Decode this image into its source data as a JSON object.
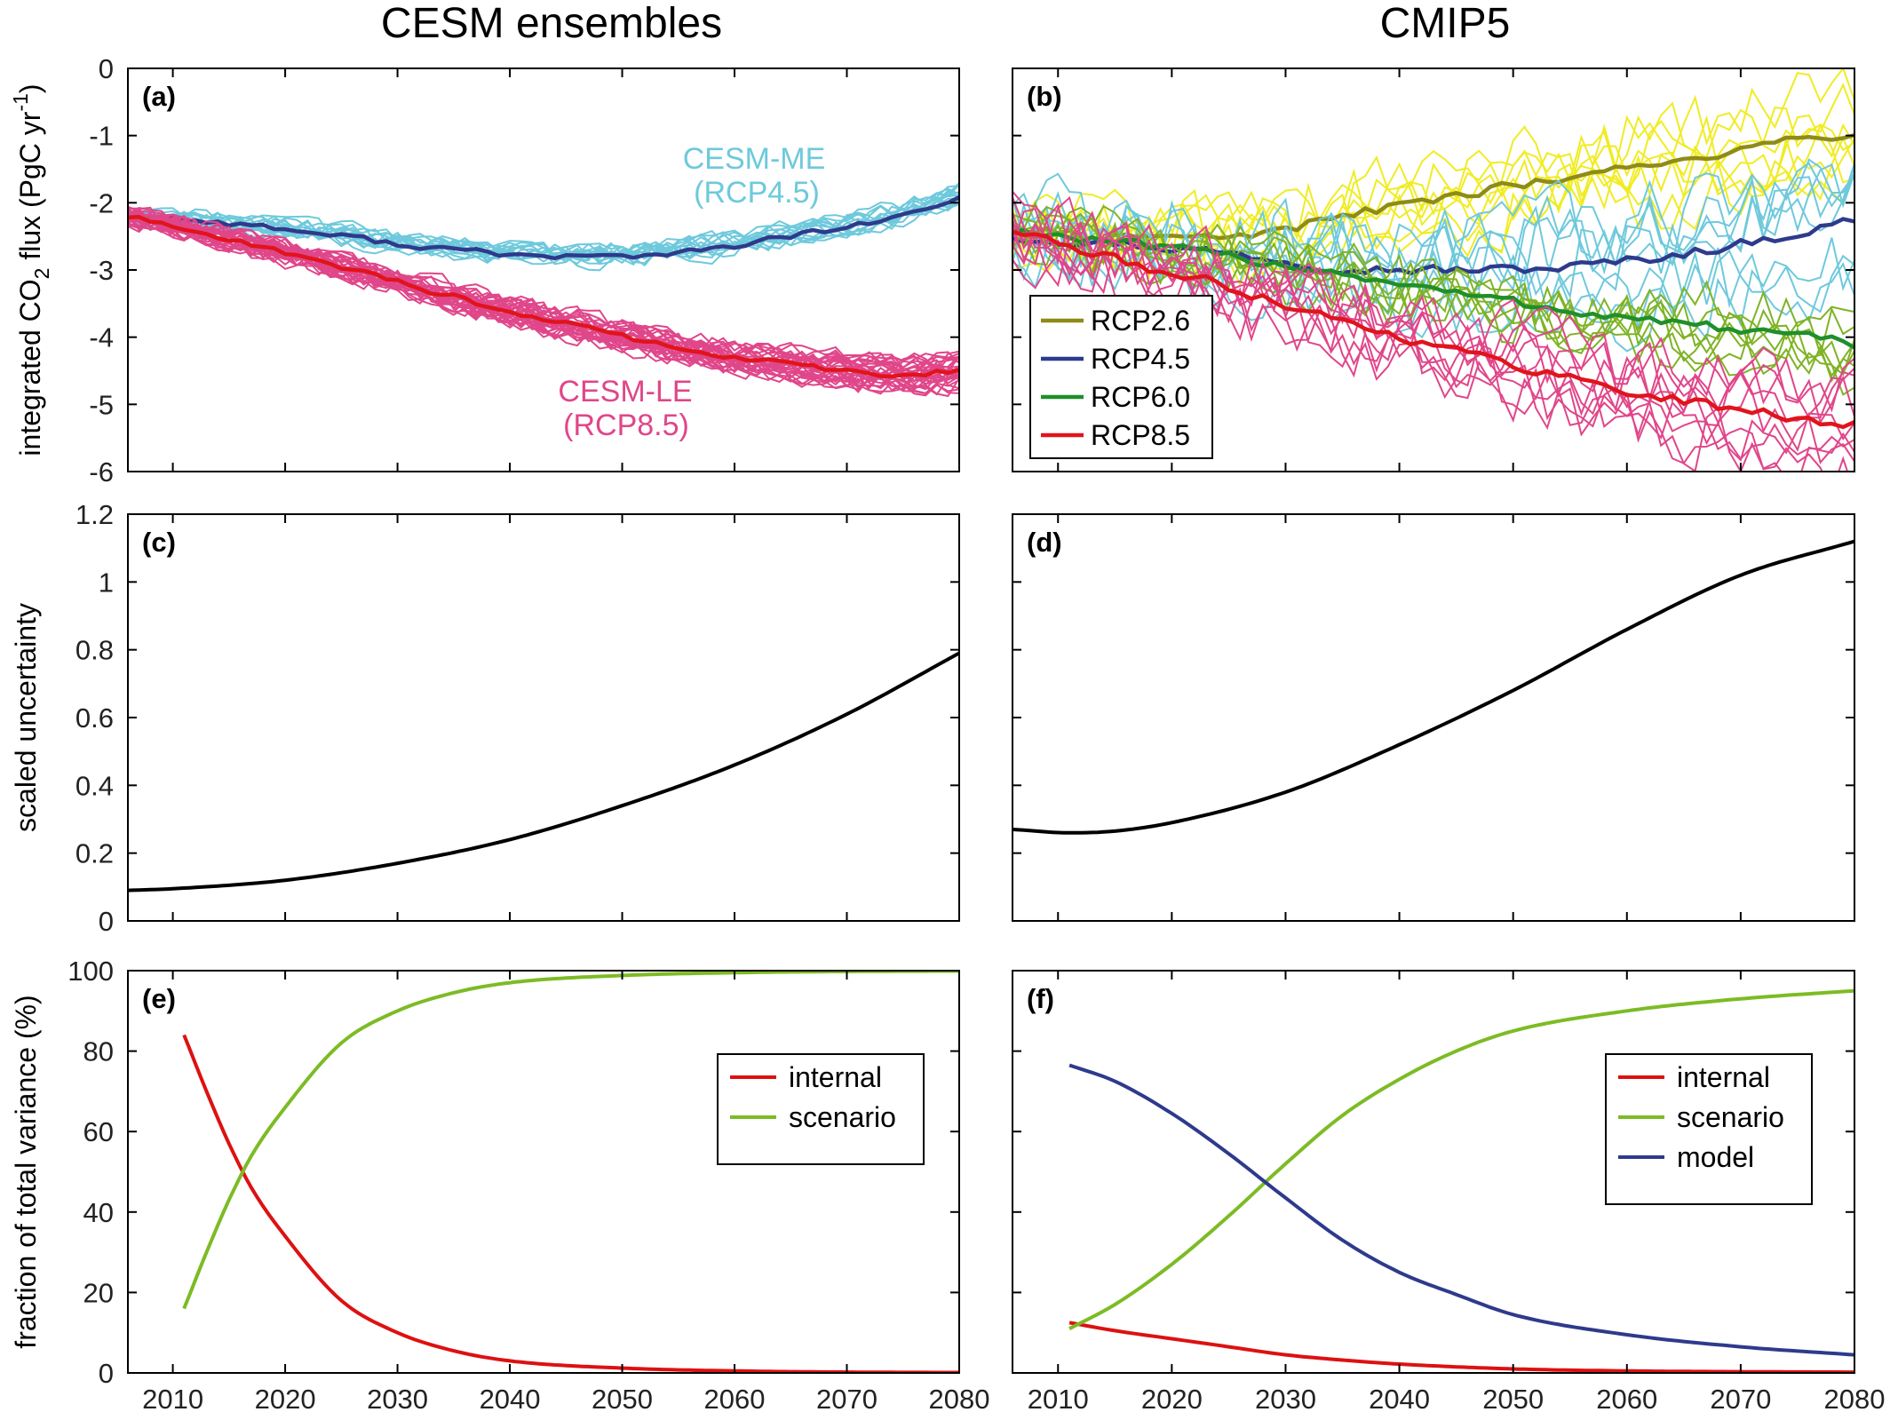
{
  "column_titles": [
    "CESM ensembles",
    "CMIP5"
  ],
  "colors": {
    "rcp26": "#8f8b17",
    "rcp26_member": "#f0ec23",
    "rcp45": "#2e3a8c",
    "rcp45_member": "#6ec9dc",
    "rcp60": "#1f8f2a",
    "rcp60_member": "#7fb325",
    "rcp85": "#e0141c",
    "rcp85_member": "#e0468a",
    "internal": "#dd1111",
    "scenario": "#7dbb25",
    "model": "#2e3a8c",
    "uncertainty": "#000000"
  },
  "chart_data": [
    {
      "panel": "(a)",
      "type": "line",
      "ylabel": "integrated CO2 flux (PgC yr-1)",
      "ylabel_parts": [
        "integrated CO",
        "2",
        " flux (PgC yr",
        "-1",
        ")"
      ],
      "xlim": [
        2006,
        2080
      ],
      "ylim": [
        -6,
        0
      ],
      "xticks": [
        2010,
        2020,
        2030,
        2040,
        2050,
        2060,
        2070,
        2080
      ],
      "yticks": [
        0,
        -1,
        -2,
        -3,
        -4,
        -5,
        -6
      ],
      "annotations": [
        {
          "lines": [
            "CESM-ME",
            "(RCP4.5)"
          ],
          "series": "rcp45"
        },
        {
          "lines": [
            "CESM-LE",
            "(RCP8.5)"
          ],
          "series": "rcp85"
        }
      ],
      "series": [
        {
          "scenario": "rcp45",
          "x": [
            2006,
            2015,
            2025,
            2035,
            2045,
            2055,
            2065,
            2075,
            2080
          ],
          "values": [
            -2.2,
            -2.3,
            -2.5,
            -2.7,
            -2.8,
            -2.75,
            -2.5,
            -2.2,
            -1.95
          ],
          "members": 15,
          "spread": 0.12
        },
        {
          "scenario": "rcp85",
          "x": [
            2006,
            2015,
            2025,
            2035,
            2045,
            2055,
            2065,
            2075,
            2080
          ],
          "values": [
            -2.2,
            -2.55,
            -2.95,
            -3.4,
            -3.8,
            -4.15,
            -4.4,
            -4.55,
            -4.5
          ],
          "members": 30,
          "spread": 0.14
        }
      ]
    },
    {
      "panel": "(b)",
      "type": "line",
      "xlim": [
        2006,
        2080
      ],
      "ylim": [
        -6,
        0
      ],
      "xticks": [
        2010,
        2020,
        2030,
        2040,
        2050,
        2060,
        2070,
        2080
      ],
      "legend": [
        "RCP2.6",
        "RCP4.5",
        "RCP6.0",
        "RCP8.5"
      ],
      "legend_position": "lower-left",
      "series": [
        {
          "name": "RCP2.6",
          "scenario": "rcp26",
          "x": [
            2006,
            2015,
            2025,
            2035,
            2045,
            2055,
            2065,
            2075,
            2080
          ],
          "values": [
            -2.4,
            -2.5,
            -2.5,
            -2.2,
            -1.9,
            -1.6,
            -1.35,
            -1.05,
            -0.95
          ],
          "members": 8,
          "spread": 0.45
        },
        {
          "name": "RCP4.5",
          "scenario": "rcp45",
          "x": [
            2006,
            2015,
            2025,
            2035,
            2045,
            2055,
            2065,
            2075,
            2080
          ],
          "values": [
            -2.5,
            -2.6,
            -2.75,
            -2.95,
            -3.0,
            -2.95,
            -2.75,
            -2.45,
            -2.25
          ],
          "members": 8,
          "spread": 0.55
        },
        {
          "name": "RCP6.0",
          "scenario": "rcp60",
          "x": [
            2006,
            2015,
            2025,
            2035,
            2045,
            2055,
            2065,
            2075,
            2080
          ],
          "values": [
            -2.4,
            -2.6,
            -2.8,
            -3.05,
            -3.35,
            -3.6,
            -3.8,
            -4.0,
            -4.1
          ],
          "members": 7,
          "spread": 0.4
        },
        {
          "name": "RCP8.5",
          "scenario": "rcp85",
          "x": [
            2006,
            2015,
            2025,
            2035,
            2045,
            2055,
            2065,
            2075,
            2080
          ],
          "values": [
            -2.4,
            -2.85,
            -3.25,
            -3.75,
            -4.2,
            -4.6,
            -4.95,
            -5.2,
            -5.3
          ],
          "members": 9,
          "spread": 0.45
        }
      ]
    },
    {
      "panel": "(c)",
      "type": "line",
      "ylabel": "scaled uncertainty",
      "xlim": [
        2006,
        2080
      ],
      "ylim": [
        0,
        1.2
      ],
      "xticks": [
        2010,
        2020,
        2030,
        2040,
        2050,
        2060,
        2070,
        2080
      ],
      "yticks": [
        0,
        0.2,
        0.4,
        0.6,
        0.8,
        1,
        1.2
      ],
      "series": [
        {
          "x": [
            2006,
            2010,
            2020,
            2030,
            2040,
            2050,
            2060,
            2070,
            2080
          ],
          "values": [
            0.09,
            0.095,
            0.12,
            0.17,
            0.24,
            0.34,
            0.46,
            0.61,
            0.79
          ]
        }
      ]
    },
    {
      "panel": "(d)",
      "type": "line",
      "xlim": [
        2006,
        2080
      ],
      "ylim": [
        0,
        1.2
      ],
      "xticks": [
        2010,
        2020,
        2030,
        2040,
        2050,
        2060,
        2070,
        2080
      ],
      "series": [
        {
          "x": [
            2006,
            2011,
            2015,
            2020,
            2030,
            2040,
            2050,
            2060,
            2070,
            2080
          ],
          "values": [
            0.27,
            0.26,
            0.265,
            0.29,
            0.38,
            0.52,
            0.68,
            0.86,
            1.02,
            1.12
          ]
        }
      ]
    },
    {
      "panel": "(e)",
      "type": "line",
      "ylabel": "fraction of total variance (%)",
      "xlim": [
        2006,
        2080
      ],
      "ylim": [
        0,
        100
      ],
      "xticks": [
        2010,
        2020,
        2030,
        2040,
        2050,
        2060,
        2070,
        2080
      ],
      "yticks": [
        0,
        20,
        40,
        60,
        80,
        100
      ],
      "legend": [
        "internal",
        "scenario"
      ],
      "legend_position": "right",
      "series": [
        {
          "name": "internal",
          "x": [
            2011,
            2013,
            2015,
            2017,
            2020,
            2025,
            2030,
            2035,
            2040,
            2050,
            2060,
            2070,
            2080
          ],
          "values": [
            84,
            70,
            57,
            46,
            34,
            18,
            10,
            5.5,
            3,
            1.2,
            0.5,
            0.2,
            0.1
          ]
        },
        {
          "name": "scenario",
          "x": [
            2011,
            2013,
            2015,
            2017,
            2020,
            2025,
            2030,
            2035,
            2040,
            2050,
            2060,
            2070,
            2080
          ],
          "values": [
            16,
            30,
            43,
            54,
            66,
            82,
            90,
            94.5,
            97,
            98.8,
            99.5,
            99.8,
            99.9
          ]
        }
      ]
    },
    {
      "panel": "(f)",
      "type": "line",
      "xlim": [
        2006,
        2080
      ],
      "ylim": [
        0,
        100
      ],
      "xticks": [
        2010,
        2020,
        2030,
        2040,
        2050,
        2060,
        2070,
        2080
      ],
      "legend": [
        "internal",
        "scenario",
        "model"
      ],
      "legend_position": "right",
      "series": [
        {
          "name": "internal",
          "x": [
            2011,
            2015,
            2020,
            2025,
            2030,
            2035,
            2040,
            2050,
            2060,
            2070,
            2080
          ],
          "values": [
            12.5,
            10.5,
            8.5,
            6.5,
            4.5,
            3.2,
            2.2,
            1.0,
            0.5,
            0.3,
            0.2
          ]
        },
        {
          "name": "scenario",
          "x": [
            2011,
            2015,
            2020,
            2025,
            2030,
            2035,
            2040,
            2045,
            2050,
            2060,
            2070,
            2080
          ],
          "values": [
            11,
            17,
            27,
            39,
            52,
            64,
            73,
            80,
            85,
            90,
            93,
            95
          ]
        },
        {
          "name": "model",
          "x": [
            2011,
            2015,
            2020,
            2025,
            2030,
            2035,
            2040,
            2045,
            2050,
            2060,
            2070,
            2080
          ],
          "values": [
            76.5,
            72.5,
            64.5,
            54.5,
            43.5,
            33,
            25,
            19.5,
            14.5,
            9.5,
            6.5,
            4.5
          ]
        }
      ]
    }
  ]
}
